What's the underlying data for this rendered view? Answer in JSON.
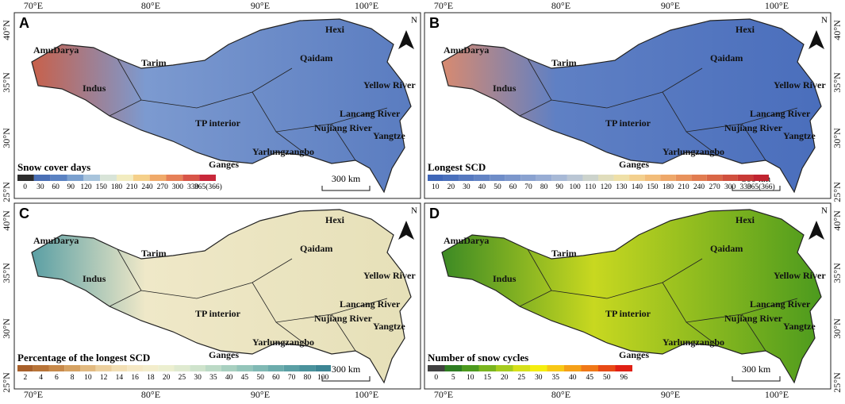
{
  "axes": {
    "lon_labels": [
      "70°E",
      "80°E",
      "90°E",
      "100°E"
    ],
    "lat_labels": [
      "40°N",
      "35°N",
      "30°N",
      "25°N"
    ]
  },
  "north": "N",
  "scale_bar": "300 km",
  "basins": [
    "AmuDarya",
    "Tarim",
    "Qaidam",
    "Hexi",
    "Indus",
    "TP interior",
    "Yellow River",
    "Lancang River",
    "Nujiang River",
    "Yangtze",
    "Yarlungzangbo",
    "Ganges"
  ],
  "panels": [
    {
      "letter": "A",
      "legend_title": "Snow cover days",
      "legend_labels": [
        "0",
        "30",
        "60",
        "90",
        "120",
        "150",
        "180",
        "210",
        "240",
        "270",
        "300",
        "330",
        "365(366)"
      ],
      "legend_colors": [
        "#2b2b2b",
        "#4a6fb5",
        "#5a82c2",
        "#7aa0cf",
        "#a8c4dc",
        "#d8e4d8",
        "#f2ecc0",
        "#f5d08a",
        "#f0aa6a",
        "#e68058",
        "#d85548",
        "#c8283a"
      ]
    },
    {
      "letter": "B",
      "legend_title": "Longest SCD",
      "legend_labels": [
        "10",
        "20",
        "30",
        "40",
        "50",
        "60",
        "70",
        "80",
        "90",
        "100",
        "110",
        "120",
        "130",
        "140",
        "150",
        "180",
        "210",
        "240",
        "270",
        "300",
        "330",
        "365(366)"
      ],
      "legend_colors": [
        "#3f66b8",
        "#4a70bc",
        "#5679c0",
        "#6283c4",
        "#6f8dc8",
        "#7c97cc",
        "#8aa2d0",
        "#98add4",
        "#a8b9d6",
        "#bac6d4",
        "#ccd3cc",
        "#e0ddbc",
        "#efe0a8",
        "#f3d08e",
        "#f2bd7a",
        "#eea86a",
        "#e8925c",
        "#e17c50",
        "#d96646",
        "#d0503e",
        "#c83a36",
        "#c02430"
      ]
    },
    {
      "letter": "C",
      "legend_title": "Percentage of the longest SCD",
      "legend_labels": [
        "2",
        "4",
        "6",
        "8",
        "10",
        "12",
        "14",
        "16",
        "18",
        "20",
        "25",
        "30",
        "35",
        "40",
        "45",
        "50",
        "60",
        "70",
        "80",
        "100"
      ],
      "legend_colors": [
        "#a8602a",
        "#b87438",
        "#c88a4a",
        "#d6a262",
        "#e2ba80",
        "#ecd09e",
        "#f2dfb4",
        "#f5e8c4",
        "#f3edcc",
        "#ecefd0",
        "#dfead0",
        "#cfe3cc",
        "#bcdac6",
        "#a8d0c0",
        "#94c5ba",
        "#80b9b4",
        "#6cacac",
        "#5a9fa4",
        "#4a929c",
        "#3c8594"
      ]
    },
    {
      "letter": "D",
      "legend_title": "Number of snow cycles",
      "legend_labels": [
        "0",
        "5",
        "10",
        "15",
        "20",
        "25",
        "30",
        "35",
        "40",
        "45",
        "50",
        "96"
      ],
      "legend_colors": [
        "#404040",
        "#2e7d22",
        "#4c9a1e",
        "#7ab51e",
        "#a6cc1e",
        "#d6e01a",
        "#f5ee10",
        "#f8c816",
        "#f5a018",
        "#f07818",
        "#e84a16",
        "#e02014"
      ]
    }
  ]
}
